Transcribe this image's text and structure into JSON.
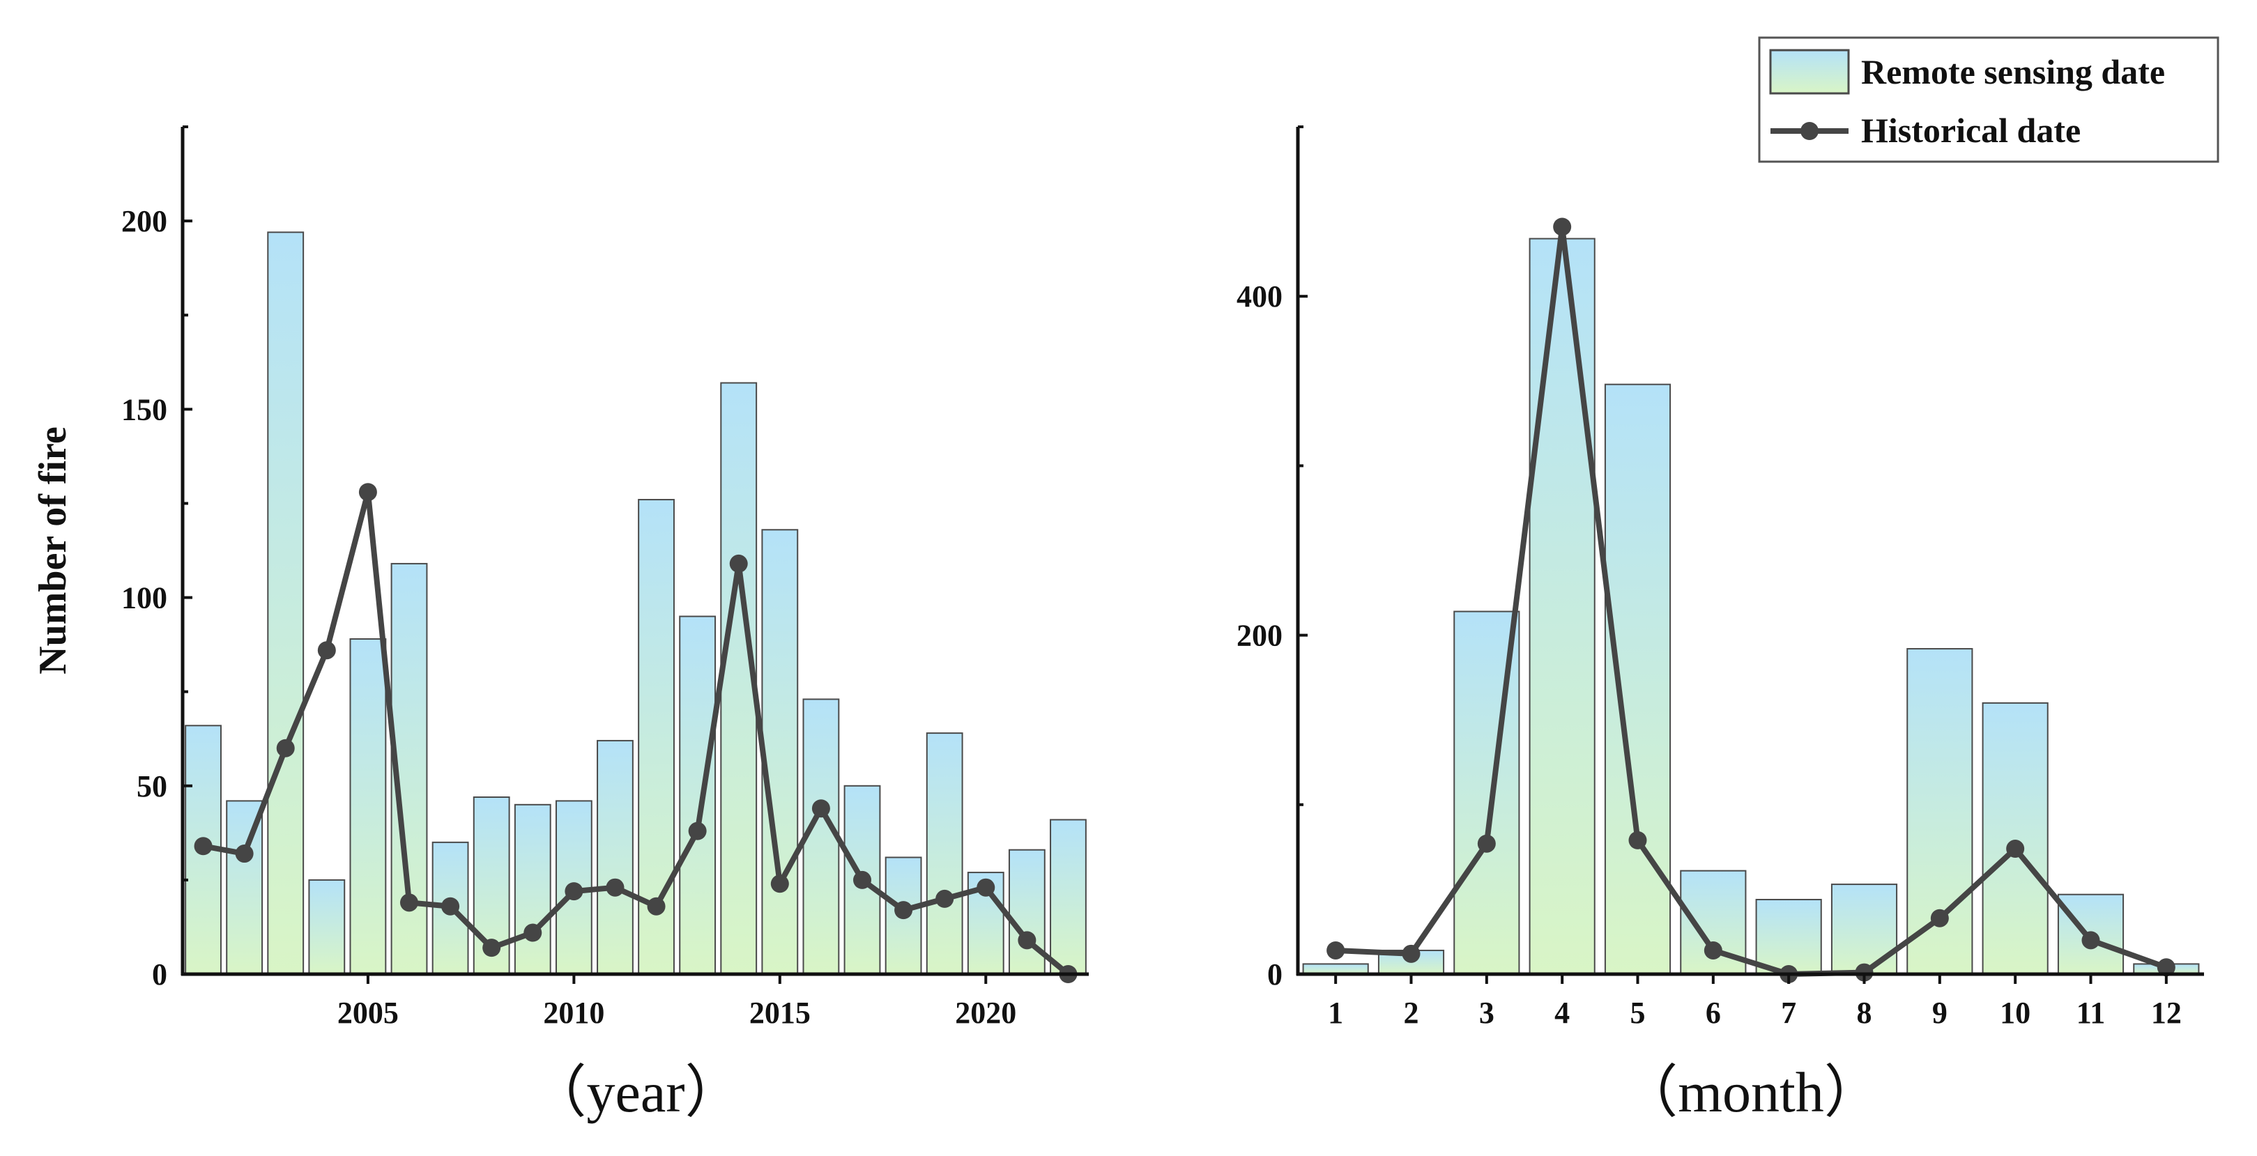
{
  "colors": {
    "bar_top": "#b4e2f8",
    "bar_bottom": "#d9f5c6",
    "bar_stroke": "#4a4a4a",
    "line": "#454545",
    "axis": "#111111"
  },
  "legend": {
    "bar_label": "Remote sensing date",
    "line_label": "Historical date"
  },
  "chart_data": [
    {
      "type": "bar+line",
      "title": "",
      "xlabel": "（year）",
      "ylabel": "Number of fire",
      "x": [
        2001,
        2002,
        2003,
        2004,
        2005,
        2006,
        2007,
        2008,
        2009,
        2010,
        2011,
        2012,
        2013,
        2014,
        2015,
        2016,
        2017,
        2018,
        2019,
        2020,
        2021,
        2022
      ],
      "xlim": [
        2000.5,
        2022.5
      ],
      "ylim": [
        0,
        225
      ],
      "xticks": [
        2005,
        2010,
        2015,
        2020
      ],
      "xtick_labels": [
        "2005",
        "2010",
        "2015",
        "2020"
      ],
      "yticks": [
        0,
        50,
        100,
        150,
        200
      ],
      "ytick_labels": [
        "0",
        "50",
        "100",
        "150",
        "200"
      ],
      "series": [
        {
          "name": "Remote sensing date",
          "kind": "bar",
          "values": [
            66,
            46,
            197,
            25,
            89,
            109,
            35,
            47,
            45,
            46,
            62,
            126,
            95,
            157,
            118,
            73,
            50,
            31,
            64,
            27,
            33,
            41
          ]
        },
        {
          "name": "Historical date",
          "kind": "line",
          "values": [
            34,
            32,
            60,
            86,
            128,
            19,
            18,
            7,
            11,
            22,
            23,
            18,
            38,
            109,
            24,
            44,
            25,
            17,
            20,
            23,
            9,
            0
          ]
        }
      ]
    },
    {
      "type": "bar+line",
      "title": "",
      "xlabel": "（month）",
      "ylabel": "",
      "x": [
        1,
        2,
        3,
        4,
        5,
        6,
        7,
        8,
        9,
        10,
        11,
        12
      ],
      "xlim": [
        0.5,
        12.5
      ],
      "ylim": [
        0,
        500
      ],
      "xticks": [
        1,
        2,
        3,
        4,
        5,
        6,
        7,
        8,
        9,
        10,
        11,
        12
      ],
      "xtick_labels": [
        "1",
        "2",
        "3",
        "4",
        "5",
        "6",
        "7",
        "8",
        "9",
        "10",
        "11",
        "12"
      ],
      "yticks": [
        0,
        200,
        400
      ],
      "ytick_labels": [
        "0",
        "200",
        "400"
      ],
      "series": [
        {
          "name": "Remote sensing date",
          "kind": "bar",
          "values": [
            6,
            14,
            214,
            434,
            348,
            61,
            44,
            53,
            192,
            160,
            47,
            6
          ]
        },
        {
          "name": "Historical date",
          "kind": "line",
          "values": [
            14,
            12,
            77,
            441,
            79,
            14,
            0,
            1,
            33,
            74,
            20,
            4
          ]
        }
      ]
    }
  ]
}
